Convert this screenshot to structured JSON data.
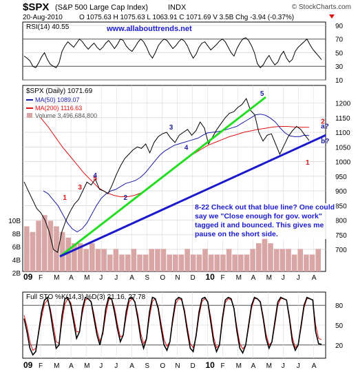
{
  "header": {
    "symbol": "$SPX",
    "name": "(S&P 500 Large Cap Index)",
    "exchange": "INDX",
    "date": "20-Aug-2010",
    "quote": "O 1075.63  H 1075.63  L 1063.91  C 1071.69  V 3.5B  Chg -3.94 (-0.37%)",
    "source": "© StockCharts.com"
  },
  "colors": {
    "price": "#000000",
    "ma50": "#1a1aa8",
    "ma200": "#dd1111",
    "volume": "#d9a6a6",
    "green_line": "#22dd22",
    "blue_line": "#1a1acc",
    "annotation": "#1a1acc",
    "wave_red": "#dd1111",
    "wave_blue": "#1a1aa8"
  },
  "chart_data": [
    {
      "type": "line",
      "panel": "rsi",
      "title": "RSI(14) 40.55",
      "watermark": "www.allabouttrends.net",
      "ylim": [
        10,
        95
      ],
      "yticks": [
        "90",
        "70",
        "50",
        "30",
        "10"
      ],
      "reference_lines": [
        70,
        30
      ],
      "series": [
        {
          "name": "RSI(14)",
          "values": [
            45,
            42,
            38,
            30,
            28,
            35,
            44,
            50,
            40,
            33,
            30,
            28,
            35,
            52,
            60,
            66,
            62,
            58,
            64,
            70,
            66,
            60,
            55,
            60,
            64,
            58,
            54,
            58,
            64,
            68,
            62,
            56,
            62,
            70,
            68,
            60,
            55,
            52,
            58,
            65,
            70,
            66,
            58,
            48,
            42,
            50,
            60,
            66,
            70,
            68,
            62,
            56,
            60,
            66,
            70,
            67,
            60,
            50,
            42,
            48,
            58,
            64,
            66,
            60,
            54,
            58,
            62,
            67,
            70,
            66,
            58,
            50,
            45,
            56,
            64,
            70,
            72,
            68,
            60,
            50,
            34,
            28,
            32,
            40,
            46,
            38,
            32,
            36,
            46,
            52,
            42,
            36,
            40,
            52,
            58,
            62,
            66,
            70,
            62,
            55,
            50,
            45,
            40
          ]
        }
      ]
    },
    {
      "type": "line",
      "panel": "price",
      "title": "$SPX (Daily) 1071.69",
      "x_start": "2009-01",
      "ylim": [
        625,
        1260
      ],
      "yticks": [
        "1200",
        "1150",
        "1100",
        "1050",
        "1000",
        "950",
        "900",
        "850",
        "800",
        "750",
        "700"
      ],
      "volume_ticks": [
        "10B",
        "8B",
        "6B",
        "4B",
        "2B"
      ],
      "xticks": [
        "09",
        "F",
        "M",
        "A",
        "M",
        "J",
        "J",
        "A",
        "S",
        "O",
        "N",
        "D",
        "10",
        "F",
        "M",
        "A",
        "M",
        "J",
        "J",
        "A"
      ],
      "legend": [
        "MA(50) 1089.07",
        "MA(200) 1116.63",
        "Volume 3,496,684,800"
      ],
      "series": [
        {
          "name": "$SPX",
          "values": [
            931,
            900,
            870,
            840,
            825,
            800,
            760,
            700,
            690,
            760,
            800,
            830,
            855,
            870,
            900,
            930,
            920,
            940,
            905,
            900,
            890,
            920,
            955,
            985,
            1010,
            1025,
            1040,
            1050,
            1045,
            1060,
            1030,
            1065,
            1085,
            1095,
            1100,
            1080,
            1065,
            1090,
            1100,
            1110,
            1090,
            1105,
            1135,
            1115,
            1060,
            1085,
            1110,
            1130,
            1150,
            1165,
            1170,
            1185,
            1195,
            1215,
            1175,
            1160,
            1100,
            1070,
            1090,
            1095,
            1060,
            1025,
            1055,
            1085,
            1105,
            1120,
            1110,
            1090,
            1072
          ]
        },
        {
          "name": "MA(50)",
          "values": [
            900,
            890,
            870,
            850,
            820,
            790,
            770,
            760,
            770,
            790,
            820,
            850,
            875,
            890,
            900,
            905,
            915,
            925,
            930,
            935,
            945,
            960,
            980,
            1000,
            1020,
            1035,
            1045,
            1055,
            1060,
            1065,
            1070,
            1075,
            1080,
            1090,
            1098,
            1100,
            1102,
            1105,
            1110,
            1115,
            1120,
            1130,
            1140,
            1150,
            1160,
            1162,
            1158,
            1148,
            1135,
            1115,
            1098,
            1088,
            1085,
            1085,
            1090,
            1089
          ]
        },
        {
          "name": "MA(200)",
          "values": [
            1150,
            1120,
            1085,
            1050,
            1020,
            990,
            960,
            935,
            910,
            895,
            885,
            880,
            880,
            885,
            895,
            910,
            930,
            950,
            970,
            990,
            1010,
            1025,
            1040,
            1055,
            1065,
            1075,
            1085,
            1092,
            1100,
            1105,
            1110,
            1114,
            1118,
            1120,
            1120,
            1118,
            1117,
            1117
          ]
        },
        {
          "name": "Volume",
          "values": [
            8,
            7,
            9,
            10,
            9,
            8,
            7,
            6,
            5,
            5,
            4,
            5,
            4,
            4,
            3,
            4,
            3,
            3,
            4,
            3,
            3,
            4,
            4,
            4,
            3,
            3,
            3,
            4,
            3,
            3,
            4,
            3,
            3,
            3,
            4,
            3,
            3,
            3,
            4,
            5,
            6,
            5,
            4,
            4,
            4,
            3,
            4,
            3,
            3,
            4
          ]
        }
      ],
      "trendlines": [
        {
          "name": "green",
          "from": {
            "x": "2009-03-09",
            "y": 676
          },
          "to": {
            "x": "2010-04-26",
            "y": 1220
          }
        },
        {
          "name": "blue",
          "from": {
            "x": "2009-03-09",
            "y": 676
          },
          "to": {
            "x": "2010-08-31",
            "y": 1090
          }
        }
      ],
      "wave_labels": [
        {
          "text": "1",
          "color": "red",
          "x": "2009-03",
          "y": 870
        },
        {
          "text": "3",
          "color": "red",
          "x": "2009-04",
          "y": 905
        },
        {
          "text": "5",
          "color": "red",
          "x": "2009-05",
          "y": 935
        },
        {
          "text": "4",
          "color": "blue",
          "x": "2009-05",
          "y": 945
        },
        {
          "text": "2",
          "color": "blue",
          "x": "2009-07",
          "y": 870
        },
        {
          "text": "3",
          "color": "blue",
          "x": "2009-10",
          "y": 1110
        },
        {
          "text": "4",
          "color": "blue",
          "x": "2009-11",
          "y": 1040
        },
        {
          "text": "5",
          "color": "blue",
          "x": "2010-04",
          "y": 1225
        },
        {
          "text": "1",
          "color": "red",
          "x": "2010-07",
          "y": 990
        },
        {
          "text": "2",
          "color": "red",
          "x": "2010-08",
          "y": 1130
        },
        {
          "text": "a?",
          "color": "blue",
          "x": "2010-08",
          "y": 1113
        },
        {
          "text": "b?",
          "color": "blue",
          "x": "2010-08",
          "y": 1062
        }
      ],
      "annotation": "8-22 Check out that blue line? One could say we \"Close enough for gov. work\" tagged it and bounced. This gives me pause on the short side."
    },
    {
      "type": "line",
      "panel": "stochastic",
      "title": "Full STO %K(14,3) %D(3) 21.16, 27.78",
      "ylim": [
        0,
        100
      ],
      "yticks": [
        "80",
        "50",
        "20"
      ],
      "reference_lines": [
        80,
        20
      ],
      "series": [
        {
          "name": "%K",
          "values": [
            60,
            40,
            15,
            5,
            10,
            40,
            70,
            88,
            92,
            70,
            40,
            15,
            20,
            65,
            90,
            92,
            80,
            55,
            30,
            40,
            75,
            92,
            90,
            85,
            60,
            35,
            20,
            40,
            75,
            92,
            90,
            70,
            45,
            25,
            35,
            70,
            90,
            92,
            85,
            60,
            30,
            15,
            30,
            70,
            92,
            90,
            75,
            45,
            20,
            12,
            25,
            60,
            88,
            92,
            90,
            70,
            40,
            15,
            10,
            35,
            70,
            90,
            92,
            85,
            55,
            25,
            10,
            20,
            60,
            88,
            92,
            90,
            75,
            40,
            15,
            8,
            20,
            50,
            80,
            92,
            90,
            85,
            60,
            30,
            15,
            25,
            55,
            85,
            92,
            90,
            88,
            60,
            25,
            12,
            20,
            50,
            80,
            92,
            90,
            88,
            40,
            22,
            21
          ]
        },
        {
          "name": "%D",
          "values": [
            65,
            48,
            25,
            12,
            15,
            38,
            62,
            82,
            88,
            75,
            50,
            25,
            22,
            55,
            82,
            90,
            84,
            62,
            40,
            40,
            68,
            88,
            90,
            86,
            66,
            42,
            26,
            36,
            66,
            88,
            90,
            76,
            52,
            32,
            35,
            62,
            85,
            90,
            86,
            66,
            38,
            22,
            30,
            62,
            86,
            90,
            78,
            52,
            28,
            18,
            25,
            55,
            82,
            90,
            88,
            74,
            46,
            22,
            16,
            32,
            64,
            86,
            90,
            86,
            62,
            32,
            16,
            20,
            55,
            84,
            90,
            88,
            76,
            46,
            22,
            14,
            20,
            46,
            76,
            90,
            90,
            86,
            64,
            36,
            20,
            24,
            50,
            80,
            90,
            90,
            88,
            64,
            32,
            16,
            20,
            46,
            76,
            90,
            90,
            88,
            50,
            30,
            28
          ]
        }
      ]
    }
  ]
}
